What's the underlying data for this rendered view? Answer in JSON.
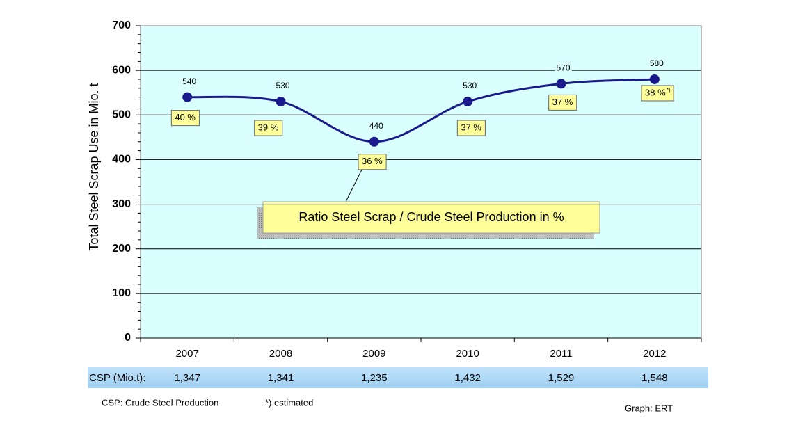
{
  "chart_data": {
    "type": "line",
    "ylabel": "Total Steel Scrap Use in Mio. t",
    "categories": [
      "2007",
      "2008",
      "2009",
      "2010",
      "2011",
      "2012"
    ],
    "values": [
      540,
      530,
      440,
      530,
      570,
      580
    ],
    "color": "#1a1a8c",
    "ylim": [
      0,
      700
    ],
    "yticks": [
      0,
      100,
      200,
      300,
      400,
      500,
      600,
      700
    ],
    "grid": true,
    "ratio_labels": [
      "40 %",
      "39 %",
      "36 %",
      "37 %",
      "37 %",
      "38 %"
    ],
    "ratio_note_marker": "*)",
    "callout": "Ratio Steel Scrap / Crude Steel Production in %"
  },
  "csp_table": {
    "label": "CSP (Mio.t):",
    "values": [
      "1,347",
      "1,341",
      "1,235",
      "1,432",
      "1,529",
      "1,548"
    ]
  },
  "notes": {
    "csp": "CSP: Crude Steel Production",
    "estimated": "*) estimated",
    "source": "Graph: ERT"
  }
}
